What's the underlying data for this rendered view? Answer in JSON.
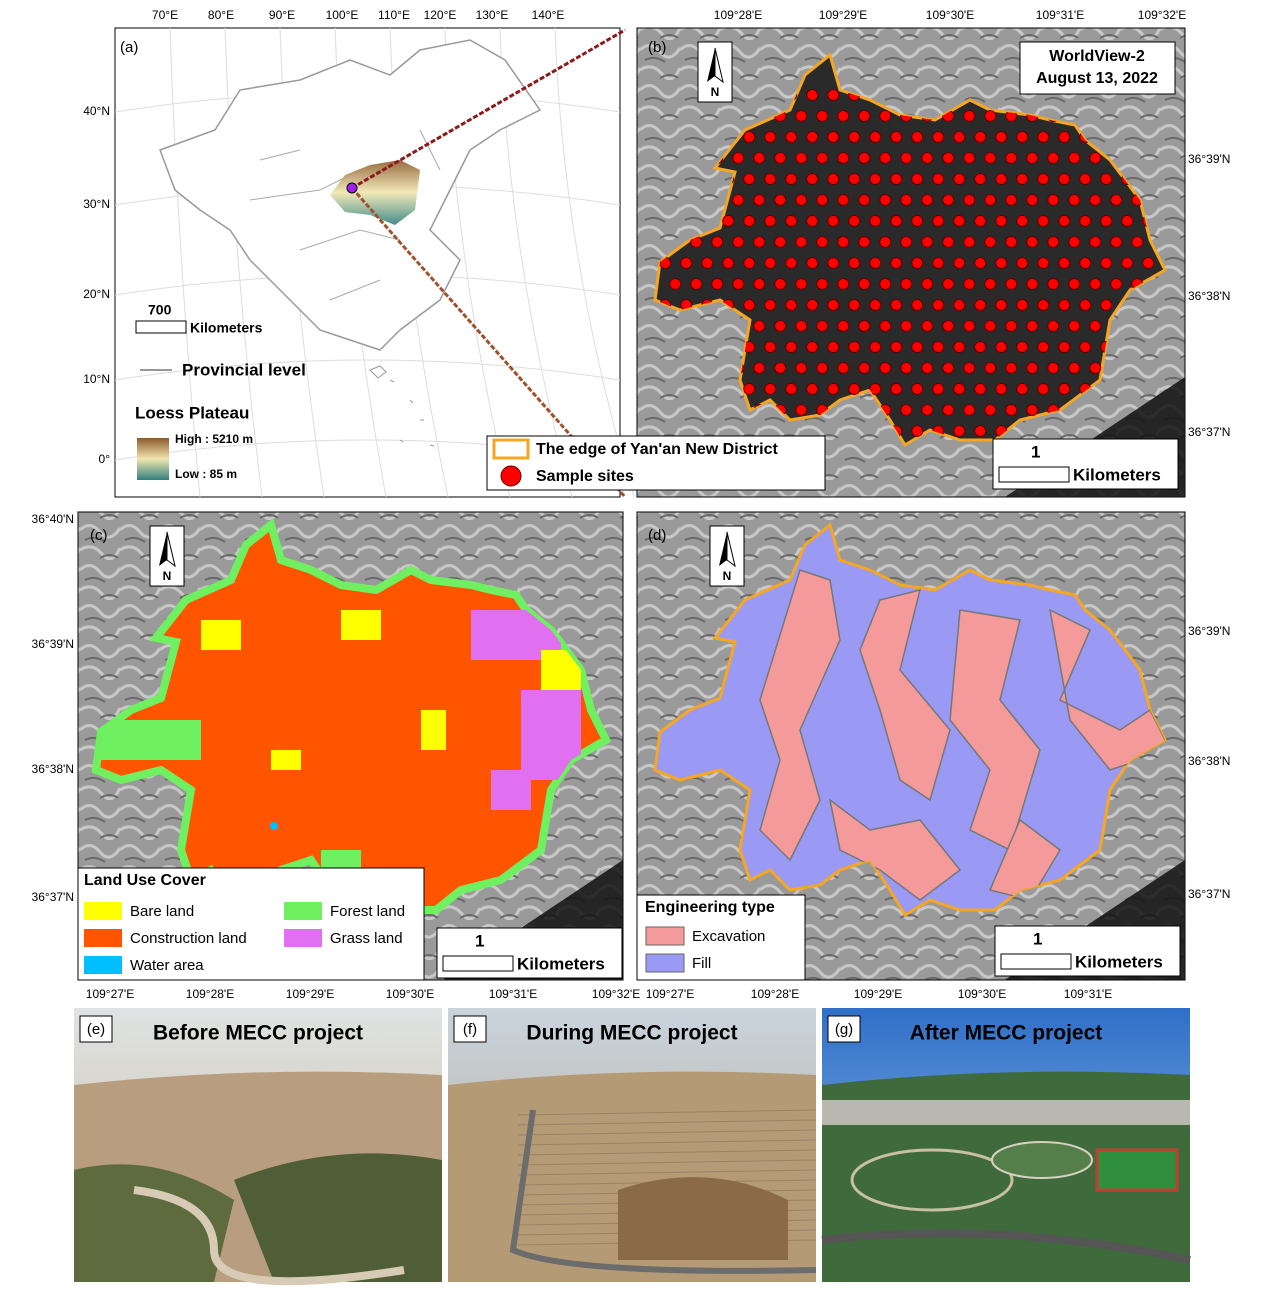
{
  "panels": {
    "a": {
      "label": "(a)",
      "lon_ticks": [
        "70°E",
        "80°E",
        "90°E",
        "100°E",
        "110°E",
        "120°E",
        "130°E",
        "140°E"
      ],
      "lat_ticks": [
        "40°N",
        "30°N",
        "20°N",
        "10°N",
        "0°"
      ],
      "scale_value": 700,
      "scale_unit": "Kilometers",
      "legend_line": "Provincial level",
      "legend_title": "Loess Plateau",
      "high": "High : 5210 m",
      "low": "Low : 85 m"
    },
    "b": {
      "label": "(b)",
      "north": "N",
      "title_lines": [
        "WorldView-2",
        "August 13, 2022"
      ],
      "lon_ticks": [
        "109°28'E",
        "109°29'E",
        "109°30'E",
        "109°31'E",
        "109°32'E"
      ],
      "lat_ticks": [
        "36°39'N",
        "36°38'N",
        "36°37'N"
      ],
      "scale_value": 1,
      "scale_unit": "Kilometers",
      "legend": [
        {
          "name": "The edge of Yan'an New District",
          "color": "#f5a623"
        },
        {
          "name": "Sample sites",
          "color": "#ff0000"
        }
      ]
    },
    "c": {
      "label": "(c)",
      "north": "N",
      "lat_ticks": [
        "36°40'N",
        "36°39'N",
        "36°38'N",
        "36°37'N"
      ],
      "lon_ticks": [
        "109°27'E",
        "109°28'E",
        "109°29'E",
        "109°30'E",
        "109°31'E",
        "109°32'E"
      ],
      "scale_value": 1,
      "scale_unit": "Kilometers",
      "legend_title": "Land Use Cover",
      "legend": [
        {
          "name": "Bare land",
          "color": "#ffff00"
        },
        {
          "name": "Forest land",
          "color": "#6ef060"
        },
        {
          "name": "Construction land",
          "color": "#ff5500"
        },
        {
          "name": "Grass land",
          "color": "#e070f0"
        },
        {
          "name": "Water area",
          "color": "#00bfff"
        }
      ]
    },
    "d": {
      "label": "(d)",
      "north": "N",
      "lat_ticks": [
        "36°39'N",
        "36°38'N",
        "36°37'N"
      ],
      "lon_ticks": [
        "109°27'E",
        "109°28'E",
        "109°29'E",
        "109°30'E",
        "109°31'E"
      ],
      "scale_value": 1,
      "scale_unit": "Kilometers",
      "legend_title": "Engineering type",
      "legend": [
        {
          "name": "Excavation",
          "color": "#f59a9a"
        },
        {
          "name": "Fill",
          "color": "#9a9af5"
        }
      ]
    },
    "e": {
      "label": "(e)",
      "caption": "Before MECC project"
    },
    "f": {
      "label": "(f)",
      "caption": "During MECC project"
    },
    "g": {
      "label": "(g)",
      "caption": "After MECC project"
    }
  }
}
